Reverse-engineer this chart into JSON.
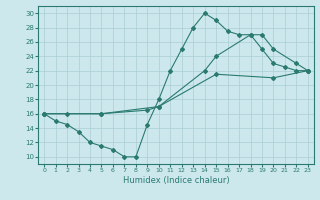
{
  "xlabel": "Humidex (Indice chaleur)",
  "xlim": [
    -0.5,
    23.5
  ],
  "ylim": [
    9,
    31
  ],
  "yticks": [
    10,
    12,
    14,
    16,
    18,
    20,
    22,
    24,
    26,
    28,
    30
  ],
  "xticks": [
    0,
    1,
    2,
    3,
    4,
    5,
    6,
    7,
    8,
    9,
    10,
    11,
    12,
    13,
    14,
    15,
    16,
    17,
    18,
    19,
    20,
    21,
    22,
    23
  ],
  "bg_color": "#cce8ed",
  "line_color": "#2a7a70",
  "grid_color": "#aacdd5",
  "line1_x": [
    0,
    1,
    2,
    3,
    4,
    5,
    6,
    7,
    8,
    9,
    10,
    11,
    12,
    13,
    14,
    15,
    16,
    17,
    18,
    19,
    20,
    21,
    22,
    23
  ],
  "line1_y": [
    16,
    15,
    14.5,
    13.5,
    12,
    11.5,
    11,
    10,
    10,
    14.5,
    18,
    22,
    25,
    28,
    30,
    29,
    27.5,
    27,
    27,
    25,
    23,
    22.5,
    22,
    22
  ],
  "line2_x": [
    0,
    2,
    5,
    9,
    10,
    14,
    15,
    18,
    19,
    20,
    22,
    23
  ],
  "line2_y": [
    16,
    16,
    16,
    16.5,
    17,
    22,
    24,
    27,
    27,
    25,
    23,
    22
  ],
  "line3_x": [
    0,
    5,
    10,
    15,
    20,
    23
  ],
  "line3_y": [
    16,
    16,
    17,
    21.5,
    21,
    22
  ]
}
